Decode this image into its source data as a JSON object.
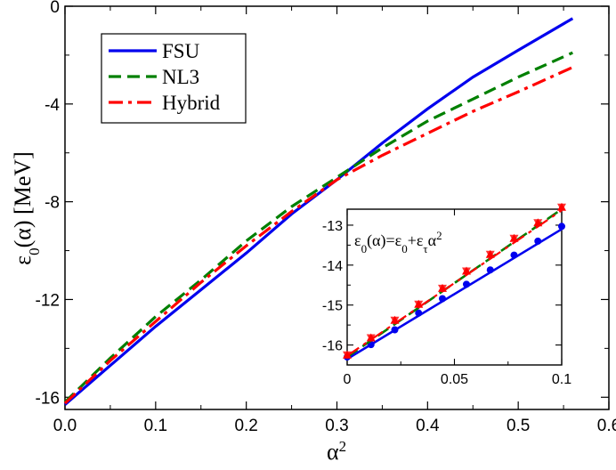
{
  "chart_data": [
    {
      "type": "line",
      "title": "",
      "xlabel": "α",
      "xlabel_sup": "2",
      "ylabel": "ε",
      "ylabel_sub": "0",
      "ylabel_rest": "(α) [MeV]",
      "xlim": [
        0,
        0.6
      ],
      "ylim": [
        -16.5,
        0
      ],
      "xticks": [
        0,
        0.1,
        0.2,
        0.3,
        0.4,
        0.5,
        0.6
      ],
      "xtick_labels": [
        "0.0",
        "0.1",
        "0.2",
        "0.3",
        "0.4",
        "0.5",
        "0.6"
      ],
      "yticks": [
        -16,
        -12,
        -8,
        -4,
        0
      ],
      "ytick_labels": [
        "-16",
        "-12",
        "-8",
        "-4",
        "0"
      ],
      "grid": false,
      "legend_position": "top-left",
      "series": [
        {
          "name": "FSU",
          "color": "#0000ee",
          "dash": "solid",
          "x": [
            0,
            0.05,
            0.1,
            0.15,
            0.2,
            0.25,
            0.3,
            0.35,
            0.4,
            0.45,
            0.5,
            0.56
          ],
          "y": [
            -16.3,
            -14.7,
            -13.1,
            -11.6,
            -10.1,
            -8.5,
            -7.1,
            -5.6,
            -4.2,
            -2.9,
            -1.8,
            -0.5
          ]
        },
        {
          "name": "NL3",
          "color": "#008000",
          "dash": "dashed",
          "x": [
            0,
            0.05,
            0.1,
            0.15,
            0.2,
            0.25,
            0.3,
            0.35,
            0.4,
            0.45,
            0.5,
            0.56
          ],
          "y": [
            -16.2,
            -14.4,
            -12.7,
            -11.2,
            -9.6,
            -8.2,
            -7.0,
            -5.8,
            -4.7,
            -3.8,
            -2.9,
            -1.9
          ]
        },
        {
          "name": "Hybrid",
          "color": "#ff0000",
          "dash": "dashdot",
          "x": [
            0,
            0.05,
            0.1,
            0.15,
            0.2,
            0.25,
            0.3,
            0.35,
            0.4,
            0.45,
            0.5,
            0.56
          ],
          "y": [
            -16.25,
            -14.5,
            -12.9,
            -11.3,
            -9.8,
            -8.4,
            -7.1,
            -6.1,
            -5.2,
            -4.3,
            -3.5,
            -2.5
          ]
        }
      ]
    },
    {
      "type": "scatter",
      "title": "",
      "annotation": {
        "parts": [
          "ε",
          "0",
          "(α)=ε",
          "0",
          "+ε",
          "τ",
          "α",
          "2"
        ]
      },
      "xlim": [
        0,
        0.1
      ],
      "ylim": [
        -16.5,
        -12.6
      ],
      "xticks": [
        0,
        0.05,
        0.1
      ],
      "xtick_labels": [
        "0",
        "0.05",
        "0.1"
      ],
      "yticks": [
        -16,
        -15,
        -14,
        -13
      ],
      "ytick_labels": [
        "-16",
        "-15",
        "-14",
        "-13"
      ],
      "grid": false,
      "series": [
        {
          "color": "#0000ee",
          "marker": "circle",
          "points_x": [
            0,
            0.0111,
            0.0222,
            0.0333,
            0.0444,
            0.0556,
            0.0667,
            0.0778,
            0.0889,
            0.1
          ],
          "points_y": [
            -16.3,
            -15.99,
            -15.62,
            -15.2,
            -14.84,
            -14.48,
            -14.12,
            -13.75,
            -13.4,
            -13.03
          ],
          "fit_x": [
            0,
            0.1
          ],
          "fit_y": [
            -16.35,
            -13.1
          ]
        },
        {
          "color": "#ff0000",
          "marker": "triangle",
          "points_x": [
            0,
            0.0111,
            0.0222,
            0.0333,
            0.0444,
            0.0556,
            0.0667,
            0.0778,
            0.0889,
            0.1
          ],
          "points_y": [
            -16.25,
            -15.82,
            -15.38,
            -14.98,
            -14.58,
            -14.15,
            -13.73,
            -13.33,
            -12.94,
            -12.55
          ],
          "fit_x": [
            0,
            0.1
          ],
          "fit_y": [
            -16.3,
            -12.6
          ],
          "fit_color": "#008000",
          "fit_dash": "dashed"
        }
      ]
    }
  ]
}
